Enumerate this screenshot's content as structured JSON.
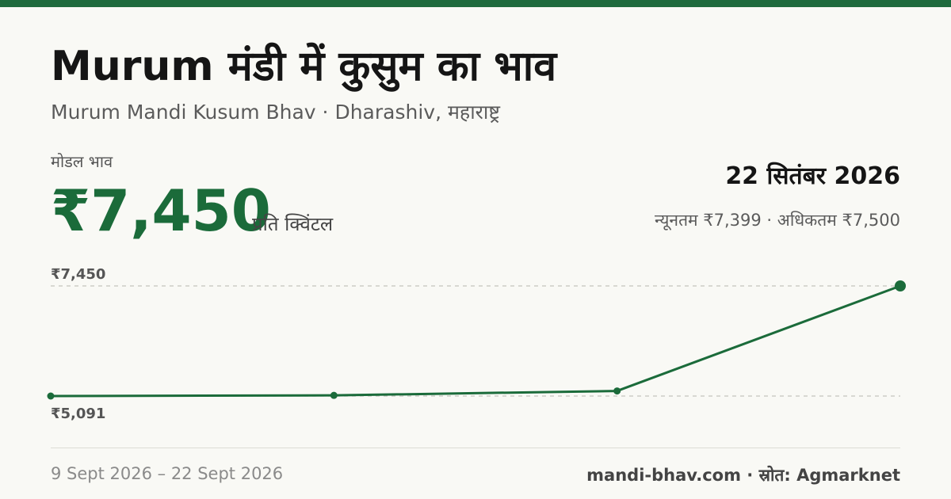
{
  "header": {
    "title": "Murum मंडी में कुसुम का भाव",
    "subtitle": "Murum Mandi Kusum Bhav · Dharashiv, महाराष्ट्र"
  },
  "summary": {
    "modal_label": "मोडल भाव",
    "modal_price": "₹7,450",
    "unit": "प्रति क्विंटल",
    "date": "22 सितंबर 2026",
    "range": "न्यूनतम ₹7,399 · अधिकतम ₹7,500"
  },
  "footer": {
    "period": "9 Sept 2026 – 22 Sept 2026",
    "source": "mandi-bhav.com · स्रोत: Agmarknet"
  },
  "colors": {
    "accent": "#1b6b3a",
    "top_bar": "#1f6a3d",
    "background": "#f9f9f5"
  },
  "chart_data": {
    "type": "line",
    "x": [
      "9 Sept 2026",
      "",
      "",
      "22 Sept 2026"
    ],
    "series": [
      {
        "values": [
          5091,
          5105,
          5200,
          7450
        ]
      }
    ],
    "y_reference_lines": [
      {
        "value": 7450,
        "label": "₹7,450"
      },
      {
        "value": 5091,
        "label": "₹5,091"
      }
    ],
    "ylim": [
      5091,
      7450
    ],
    "grid": false
  }
}
